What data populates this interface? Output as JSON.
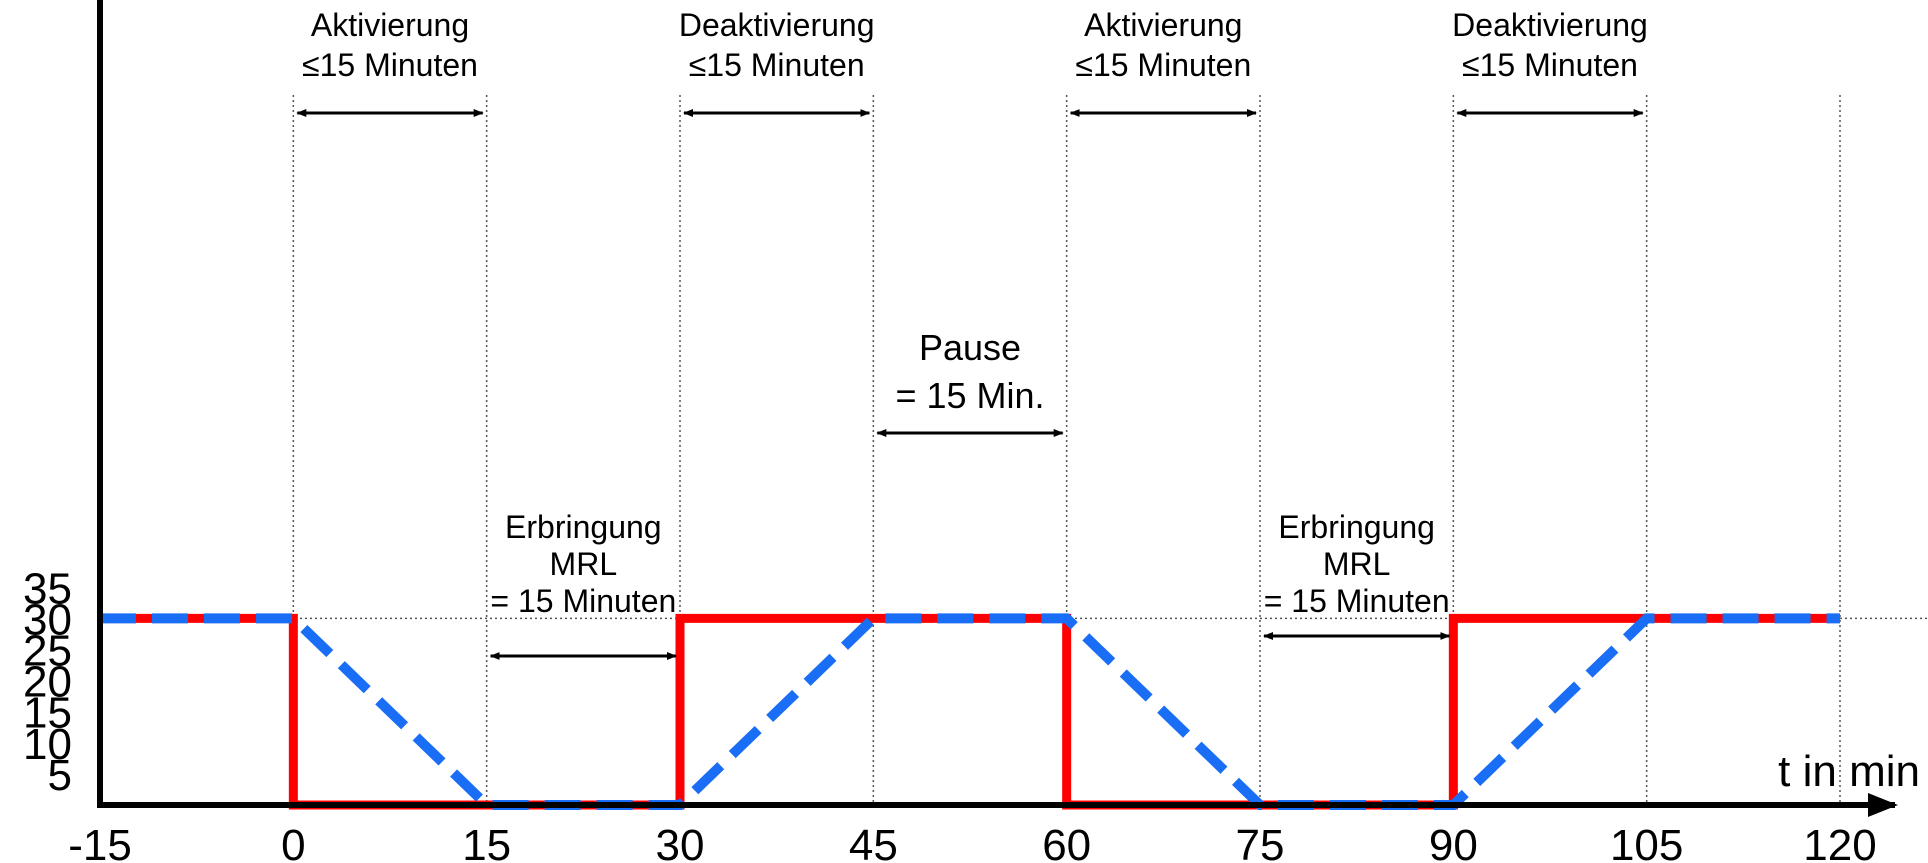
{
  "chart_data": {
    "type": "line",
    "title": "",
    "xlabel": "t in min",
    "ylabel": "",
    "xlim": [
      -15,
      120
    ],
    "ylim": [
      0,
      35
    ],
    "x_ticks": [
      -15,
      0,
      15,
      30,
      45,
      60,
      75,
      90,
      105,
      120
    ],
    "y_ticks": [
      5,
      10,
      15,
      20,
      25,
      30,
      35
    ],
    "x_tick_labels": [
      "-15",
      "0",
      "15",
      "30",
      "45",
      "60",
      "75",
      "90",
      "105",
      "120"
    ],
    "y_tick_labels": [
      "5",
      "10",
      "15",
      "20",
      "25",
      "30",
      "35"
    ],
    "grid": "dotted vertical lines at 0, 15, 30, 45, 60, 75, 90, 105, 120; dotted horizontal line at 30",
    "legend": "none",
    "series": [
      {
        "style": "solid",
        "color": "#ff0000",
        "points": [
          [
            -15,
            30
          ],
          [
            0,
            30
          ],
          [
            0,
            0
          ],
          [
            30,
            0
          ],
          [
            30,
            30
          ],
          [
            60,
            30
          ],
          [
            60,
            0
          ],
          [
            90,
            0
          ],
          [
            90,
            30
          ],
          [
            120,
            30
          ]
        ]
      },
      {
        "style": "dashed",
        "color": "#1a6ef5",
        "points": [
          [
            -15,
            30
          ],
          [
            0,
            30
          ],
          [
            15,
            0
          ],
          [
            30,
            0
          ],
          [
            45,
            30
          ],
          [
            60,
            30
          ],
          [
            75,
            0
          ],
          [
            90,
            0
          ],
          [
            105,
            30
          ],
          [
            120,
            30
          ]
        ]
      }
    ],
    "annotations": [
      {
        "lines": [
          "Aktivierung",
          "≤15 Minuten"
        ],
        "from": 0,
        "to": 15
      },
      {
        "lines": [
          "Deaktivierung",
          "≤15 Minuten"
        ],
        "from": 30,
        "to": 45
      },
      {
        "lines": [
          "Aktivierung",
          "≤15 Minuten"
        ],
        "from": 60,
        "to": 75
      },
      {
        "lines": [
          "Deaktivierung",
          "≤15 Minuten"
        ],
        "from": 90,
        "to": 105
      },
      {
        "lines": [
          "Pause",
          "= 15 Min."
        ],
        "from": 45,
        "to": 60
      },
      {
        "lines": [
          "Erbringung",
          "MRL",
          "= 15 Minuten"
        ],
        "from": 15,
        "to": 30
      },
      {
        "lines": [
          "Erbringung",
          "MRL",
          "= 15 Minuten"
        ],
        "from": 75,
        "to": 90
      }
    ]
  }
}
